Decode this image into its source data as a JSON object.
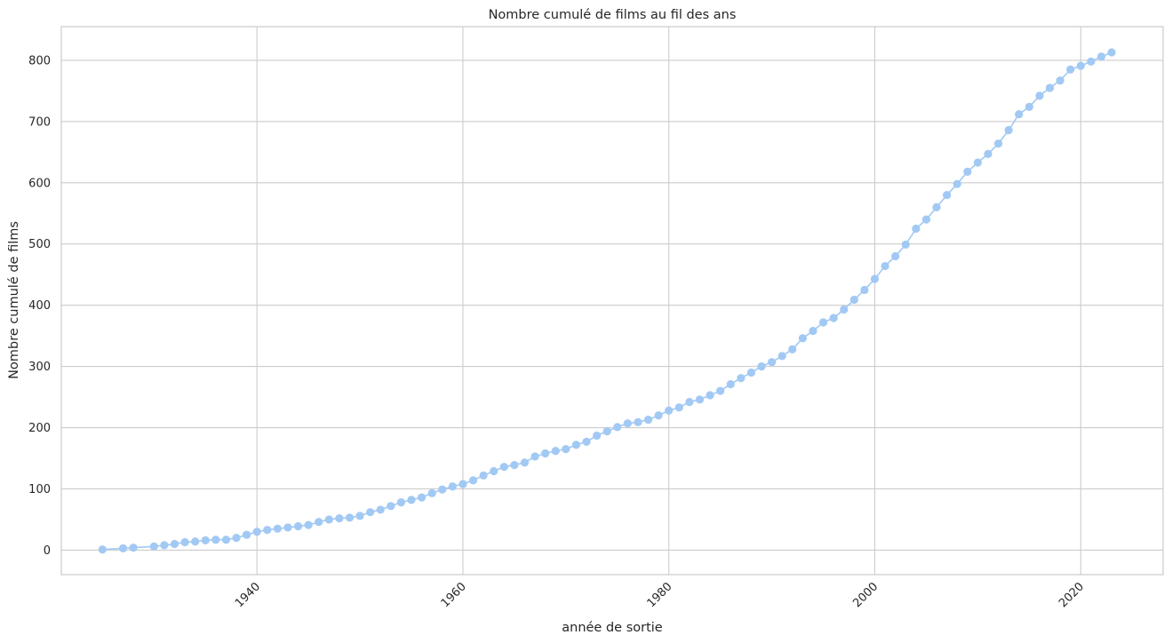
{
  "chart_data": {
    "type": "line",
    "title": "Nombre cumulé de films au fil des ans",
    "xlabel": "année de sortie",
    "ylabel": "Nombre cumulé de films",
    "xlim": [
      1921,
      2028
    ],
    "ylim": [
      -40,
      855
    ],
    "xticks": [
      1940,
      1960,
      1980,
      2000,
      2020
    ],
    "yticks": [
      0,
      100,
      200,
      300,
      400,
      500,
      600,
      700,
      800
    ],
    "x_tick_rotation": 45,
    "grid": true,
    "legend": "none",
    "marker": "circle",
    "color": "#a1c9f4",
    "series": [
      {
        "x": [
          1925,
          1927,
          1928,
          1930,
          1931,
          1932,
          1933,
          1934,
          1935,
          1936,
          1937,
          1938,
          1939,
          1940,
          1941,
          1942,
          1943,
          1944,
          1945,
          1946,
          1947,
          1948,
          1949,
          1950,
          1951,
          1952,
          1953,
          1954,
          1955,
          1956,
          1957,
          1958,
          1959,
          1960,
          1961,
          1962,
          1963,
          1964,
          1965,
          1966,
          1967,
          1968,
          1969,
          1970,
          1971,
          1972,
          1973,
          1974,
          1975,
          1976,
          1977,
          1978,
          1979,
          1980,
          1981,
          1982,
          1983,
          1984,
          1985,
          1986,
          1987,
          1988,
          1989,
          1990,
          1991,
          1992,
          1993,
          1994,
          1995,
          1996,
          1997,
          1998,
          1999,
          2000,
          2001,
          2002,
          2003,
          2004,
          2005,
          2006,
          2007,
          2008,
          2009,
          2010,
          2011,
          2012,
          2013,
          2014,
          2015,
          2016,
          2017,
          2018,
          2019,
          2020,
          2021,
          2022,
          2023
        ],
        "values": [
          1,
          3,
          4,
          6,
          8,
          10,
          13,
          14,
          16,
          17,
          17,
          20,
          25,
          30,
          33,
          35,
          37,
          39,
          41,
          46,
          50,
          52,
          53,
          56,
          62,
          66,
          72,
          78,
          82,
          86,
          93,
          99,
          104,
          108,
          114,
          122,
          129,
          136,
          139,
          143,
          153,
          158,
          162,
          165,
          172,
          177,
          187,
          194,
          201,
          207,
          209,
          213,
          220,
          228,
          233,
          242,
          246,
          253,
          260,
          271,
          281,
          290,
          300,
          307,
          317,
          328,
          346,
          358,
          372,
          379,
          393,
          409,
          425,
          443,
          464,
          480,
          499,
          525,
          540,
          560,
          580,
          598,
          618,
          633,
          647,
          664,
          686,
          712,
          724,
          742,
          755,
          767,
          785,
          791,
          798,
          806,
          813
        ]
      }
    ]
  }
}
